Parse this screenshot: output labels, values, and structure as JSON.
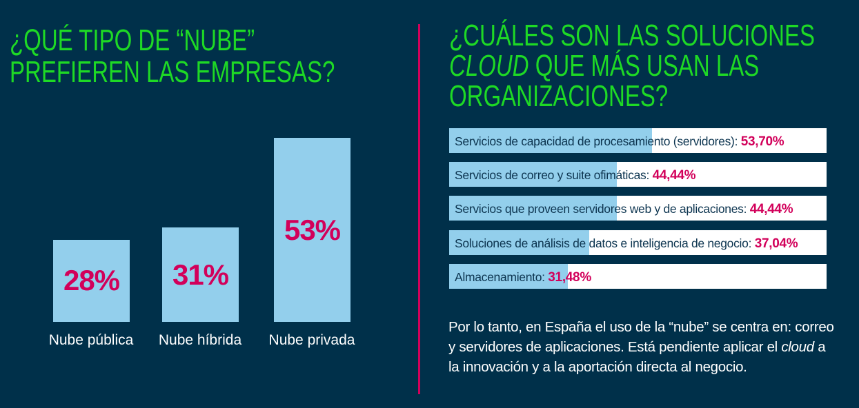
{
  "left": {
    "title_line1": "¿QUÉ TIPO DE “NUBE”",
    "title_line2": "PREFIEREN LAS EMPRESAS?"
  },
  "right": {
    "title_line1": "¿CUÁLES SON LAS SOLUCIONES",
    "title_italic": "CLOUD",
    "title_line2_rest": " QUE MÁS USAN LAS",
    "title_line3": "ORGANIZACIONES?"
  },
  "chart_data": [
    {
      "type": "bar",
      "title": "¿QUÉ TIPO DE “NUBE” PREFIEREN LAS EMPRESAS?",
      "categories": [
        "Nube pública",
        "Nube híbrida",
        "Nube privada"
      ],
      "values": [
        28,
        31,
        53
      ],
      "labels": [
        "28%",
        "31%",
        "53%"
      ],
      "unit": "%"
    },
    {
      "type": "bar",
      "orientation": "horizontal",
      "title": "¿CUÁLES SON LAS SOLUCIONES CLOUD QUE MÁS USAN LAS ORGANIZACIONES?",
      "categories": [
        "Servicios de capacidad de procesamiento (servidores):",
        "Servicios de correo y suite ofimáticas:",
        "Servicios que proveen servidores web y de aplicaciones:",
        "Soluciones de análisis de datos e inteligencia de negocio:",
        "Almacenamiento:"
      ],
      "values": [
        53.7,
        44.44,
        44.44,
        37.04,
        31.48
      ],
      "labels": [
        "53,70%",
        "44,44%",
        "44,44%",
        "37,04%",
        "31,48%"
      ],
      "xlim": [
        0,
        100
      ]
    }
  ],
  "conclusion": {
    "p1": "Por lo tanto, en España el uso de la “nube” se centra en: correo y servidores de aplicaciones. Está pendiente aplicar el ",
    "italic": "cloud",
    "p2": " a la innovación y a la aportación directa al negocio."
  },
  "colors": {
    "background": "#00304a",
    "green": "#1ed925",
    "magenta": "#d2005a",
    "bar": "#93cfec"
  }
}
